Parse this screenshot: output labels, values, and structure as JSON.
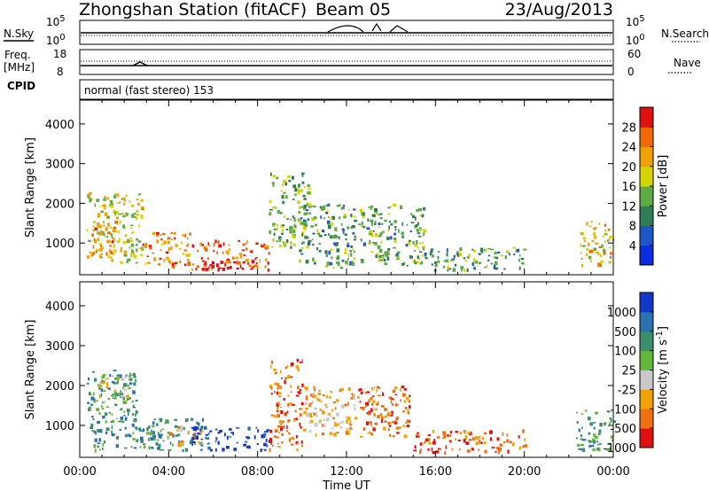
{
  "header": {
    "station": "Zhongshan Station (fitACF)",
    "beam": "Beam 05",
    "date": "23/Aug/2013"
  },
  "status_panels": {
    "nsky_label": "N.Sky",
    "nsearch_label": "N.Search",
    "n_top_tick": "10^5",
    "n_bottom_tick": "10^0",
    "freq_label_line1": "Freq.",
    "freq_label_line2": "[MHz]",
    "freq_ticks": [
      "18",
      "8"
    ],
    "nave_label": "Nave",
    "nave_ticks": [
      "60",
      "0"
    ],
    "cpid_label": "CPID",
    "cpid_text": "normal (fast stereo) 153"
  },
  "chart_data": [
    {
      "type": "heatmap",
      "name": "power",
      "ylabel": "Slant Range [km]",
      "y_ticks": [
        "1000",
        "2000",
        "3000",
        "4000"
      ],
      "ylim": [
        200,
        4600
      ],
      "x_ticks": [
        "00:00",
        "04:00",
        "08:00",
        "12:00",
        "16:00",
        "20:00",
        "00:00"
      ],
      "xlim": [
        0,
        24
      ],
      "colorbar": {
        "label": "Power [dB]",
        "ticks": [
          "4",
          "8",
          "12",
          "16",
          "20",
          "24",
          "28"
        ],
        "colors": [
          "#0a2de0",
          "#1e55c8",
          "#2f7d55",
          "#5cab45",
          "#d4d400",
          "#f0a000",
          "#f06a00",
          "#e01010"
        ]
      },
      "regions": [
        {
          "t0": 0.3,
          "t1": 2.8,
          "r0": 500,
          "r1": 2300,
          "v": 18
        },
        {
          "t0": 0.5,
          "t1": 1.6,
          "r0": 700,
          "r1": 1600,
          "v": 24
        },
        {
          "t0": 2.8,
          "t1": 5.0,
          "r0": 450,
          "r1": 1300,
          "v": 24
        },
        {
          "t0": 5.0,
          "t1": 8.5,
          "r0": 350,
          "r1": 1100,
          "v": 26
        },
        {
          "t0": 5.5,
          "t1": 8.0,
          "r0": 350,
          "r1": 550,
          "v": 30
        },
        {
          "t0": 8.5,
          "t1": 10.3,
          "r0": 900,
          "r1": 2800,
          "v": 14
        },
        {
          "t0": 9.8,
          "t1": 12.4,
          "r0": 400,
          "r1": 2000,
          "v": 12
        },
        {
          "t0": 12.5,
          "t1": 15.5,
          "r0": 450,
          "r1": 2000,
          "v": 13
        },
        {
          "t0": 15.5,
          "t1": 20.0,
          "r0": 350,
          "r1": 900,
          "v": 12
        },
        {
          "t0": 22.5,
          "t1": 24.0,
          "r0": 450,
          "r1": 1600,
          "v": 20
        }
      ]
    },
    {
      "type": "heatmap",
      "name": "velocity",
      "ylabel": "Slant Range [km]",
      "y_ticks": [
        "1000",
        "2000",
        "3000",
        "4000"
      ],
      "ylim": [
        200,
        4600
      ],
      "x_ticks": [
        "00:00",
        "04:00",
        "08:00",
        "12:00",
        "16:00",
        "20:00",
        "00:00"
      ],
      "xlim": [
        0,
        24
      ],
      "xlabel": "Time UT",
      "colorbar": {
        "label": "Velocity [m s^-1]",
        "ticks": [
          "1000",
          "500",
          "100",
          "25",
          "-25",
          "-100",
          "-500",
          "-1000"
        ],
        "colors": [
          "#1238c8",
          "#2b73b0",
          "#3b8f6a",
          "#63b83a",
          "#c8c8c8",
          "#f0a000",
          "#f07010",
          "#e01010"
        ]
      },
      "regions": [
        {
          "t0": 0.3,
          "t1": 2.5,
          "r0": 400,
          "r1": 2400,
          "v": 2
        },
        {
          "t0": 0.8,
          "t1": 2.2,
          "r0": 1600,
          "r1": 2300,
          "v": 4
        },
        {
          "t0": 2.5,
          "t1": 5.5,
          "r0": 400,
          "r1": 1200,
          "v": 2
        },
        {
          "t0": 4.0,
          "t1": 5.5,
          "r0": 500,
          "r1": 1000,
          "v": 5
        },
        {
          "t0": 5.0,
          "t1": 8.5,
          "r0": 400,
          "r1": 1000,
          "v": 0
        },
        {
          "t0": 8.5,
          "t1": 10.0,
          "r0": 400,
          "r1": 2700,
          "v": 6
        },
        {
          "t0": 10.0,
          "t1": 12.5,
          "r0": 800,
          "r1": 2000,
          "v": 5
        },
        {
          "t0": 12.5,
          "t1": 14.8,
          "r0": 700,
          "r1": 2000,
          "v": 6
        },
        {
          "t0": 15.0,
          "t1": 20.0,
          "r0": 350,
          "r1": 900,
          "v": 6
        },
        {
          "t0": 22.3,
          "t1": 24.0,
          "r0": 400,
          "r1": 1400,
          "v": 2
        }
      ]
    }
  ]
}
